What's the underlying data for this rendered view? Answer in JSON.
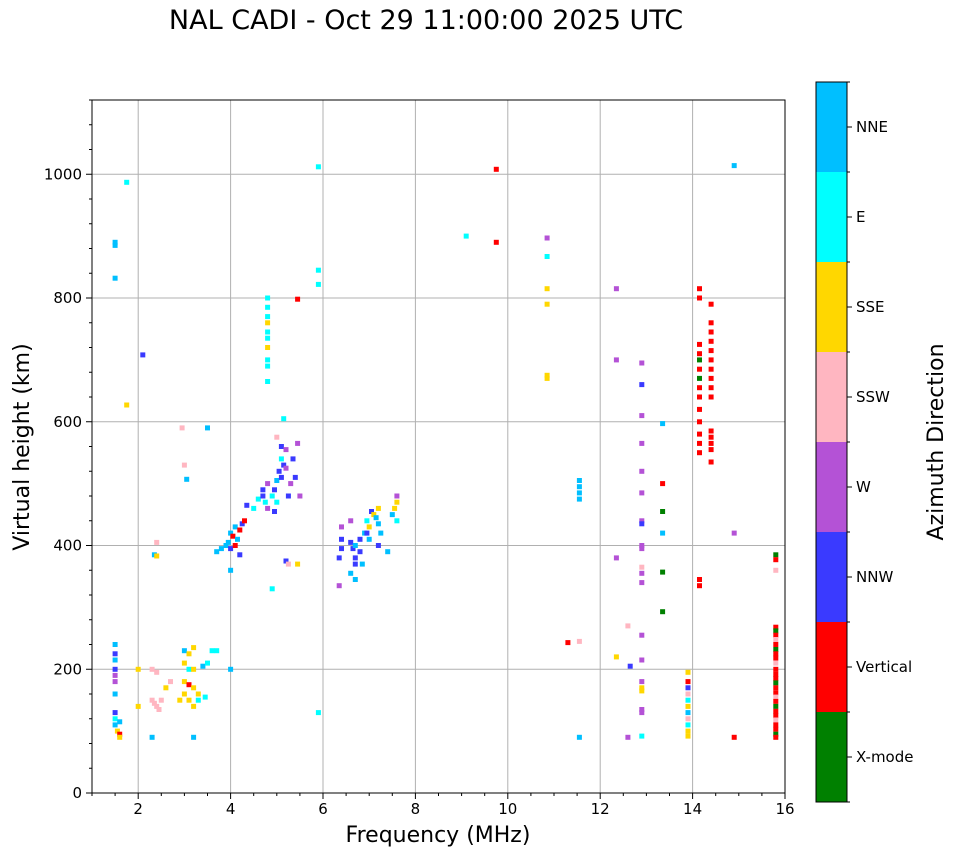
{
  "chart_data": {
    "type": "scatter",
    "title": "NAL CADI - Oct 29 11:00:00 2025 UTC",
    "xlabel": "Frequency (MHz)",
    "ylabel": "Virtual height (km)",
    "xlim": [
      1,
      16
    ],
    "ylim": [
      0,
      1120
    ],
    "xticks": [
      2,
      4,
      6,
      8,
      10,
      12,
      14,
      16
    ],
    "yticks": [
      0,
      200,
      400,
      600,
      800,
      1000
    ],
    "grid": true,
    "colorbar": {
      "label": "Azimuth Direction",
      "categories": [
        {
          "name": "X-mode",
          "color": "#008000"
        },
        {
          "name": "Vertical",
          "color": "#ff0000"
        },
        {
          "name": "NNW",
          "color": "#3a3aff"
        },
        {
          "name": "W",
          "color": "#b452d6"
        },
        {
          "name": "SSW",
          "color": "#ffb6c1"
        },
        {
          "name": "SSE",
          "color": "#ffd700"
        },
        {
          "name": "E",
          "color": "#00ffff"
        },
        {
          "name": "NNE",
          "color": "#00bfff"
        }
      ]
    },
    "points": [
      [
        1.5,
        885,
        "NNE"
      ],
      [
        1.5,
        890,
        "NNE"
      ],
      [
        1.5,
        832,
        "NNE"
      ],
      [
        1.75,
        987,
        "E"
      ],
      [
        1.75,
        627,
        "SSE"
      ],
      [
        1.5,
        240,
        "NNE"
      ],
      [
        1.5,
        225,
        "NNW"
      ],
      [
        1.5,
        215,
        "NNE"
      ],
      [
        1.5,
        200,
        "NNW"
      ],
      [
        1.5,
        190,
        "W"
      ],
      [
        1.5,
        180,
        "W"
      ],
      [
        1.5,
        160,
        "NNE"
      ],
      [
        1.5,
        130,
        "NNW"
      ],
      [
        1.5,
        120,
        "E"
      ],
      [
        1.5,
        110,
        "NNE"
      ],
      [
        1.55,
        100,
        "SSE"
      ],
      [
        1.6,
        95,
        "Vertical"
      ],
      [
        1.6,
        90,
        "SSE"
      ],
      [
        1.6,
        115,
        "NNE"
      ],
      [
        2.1,
        708,
        "NNW"
      ],
      [
        2.0,
        200,
        "SSE"
      ],
      [
        2.0,
        140,
        "SSE"
      ],
      [
        2.35,
        385,
        "NNE"
      ],
      [
        2.4,
        383,
        "SSE"
      ],
      [
        2.4,
        405,
        "SSW"
      ],
      [
        2.3,
        200,
        "SSW"
      ],
      [
        2.4,
        195,
        "SSW"
      ],
      [
        2.3,
        150,
        "SSW"
      ],
      [
        2.35,
        145,
        "SSW"
      ],
      [
        2.4,
        140,
        "SSW"
      ],
      [
        2.45,
        135,
        "SSW"
      ],
      [
        2.5,
        150,
        "SSW"
      ],
      [
        2.3,
        90,
        "NNE"
      ],
      [
        2.6,
        170,
        "SSE"
      ],
      [
        2.7,
        180,
        "SSW"
      ],
      [
        2.9,
        150,
        "SSE"
      ],
      [
        2.95,
        590,
        "SSW"
      ],
      [
        3.0,
        530,
        "SSW"
      ],
      [
        3.05,
        507,
        "NNE"
      ],
      [
        3.0,
        230,
        "NNE"
      ],
      [
        3.1,
        225,
        "SSE"
      ],
      [
        3.2,
        235,
        "SSE"
      ],
      [
        3.0,
        210,
        "SSE"
      ],
      [
        3.1,
        200,
        "E"
      ],
      [
        3.2,
        200,
        "SSE"
      ],
      [
        3.0,
        180,
        "SSE"
      ],
      [
        3.1,
        175,
        "Vertical"
      ],
      [
        3.2,
        170,
        "SSE"
      ],
      [
        3.3,
        160,
        "SSE"
      ],
      [
        3.0,
        160,
        "SSE"
      ],
      [
        3.1,
        150,
        "SSE"
      ],
      [
        3.2,
        140,
        "SSE"
      ],
      [
        3.3,
        150,
        "E"
      ],
      [
        3.4,
        205,
        "NNE"
      ],
      [
        3.5,
        210,
        "E"
      ],
      [
        3.6,
        230,
        "E"
      ],
      [
        3.7,
        230,
        "E"
      ],
      [
        3.2,
        90,
        "NNE"
      ],
      [
        3.45,
        155,
        "E"
      ],
      [
        3.5,
        590,
        "NNE"
      ],
      [
        3.7,
        390,
        "NNE"
      ],
      [
        3.8,
        395,
        "NNE"
      ],
      [
        3.9,
        400,
        "NNE"
      ],
      [
        3.95,
        405,
        "NNE"
      ],
      [
        4.0,
        420,
        "NNE"
      ],
      [
        4.05,
        415,
        "Vertical"
      ],
      [
        4.1,
        430,
        "NNE"
      ],
      [
        4.0,
        395,
        "NNW"
      ],
      [
        4.1,
        400,
        "Vertical"
      ],
      [
        4.15,
        410,
        "NNE"
      ],
      [
        4.2,
        425,
        "Vertical"
      ],
      [
        4.25,
        435,
        "NNW"
      ],
      [
        4.3,
        440,
        "Vertical"
      ],
      [
        4.2,
        385,
        "NNW"
      ],
      [
        4.0,
        360,
        "NNE"
      ],
      [
        4.0,
        200,
        "NNE"
      ],
      [
        4.35,
        465,
        "NNW"
      ],
      [
        4.5,
        460,
        "E"
      ],
      [
        4.6,
        475,
        "E"
      ],
      [
        4.7,
        490,
        "NNW"
      ],
      [
        4.7,
        480,
        "NNW"
      ],
      [
        4.75,
        470,
        "E"
      ],
      [
        4.8,
        500,
        "W"
      ],
      [
        4.8,
        460,
        "W"
      ],
      [
        4.9,
        480,
        "E"
      ],
      [
        4.95,
        490,
        "NNW"
      ],
      [
        5.0,
        505,
        "NNE"
      ],
      [
        5.0,
        470,
        "E"
      ],
      [
        4.95,
        455,
        "NNW"
      ],
      [
        5.05,
        520,
        "NNW"
      ],
      [
        5.1,
        540,
        "E"
      ],
      [
        5.1,
        510,
        "NNW"
      ],
      [
        5.15,
        530,
        "NNW"
      ],
      [
        5.2,
        525,
        "W"
      ],
      [
        5.25,
        480,
        "NNW"
      ],
      [
        5.3,
        500,
        "W"
      ],
      [
        5.35,
        540,
        "NNW"
      ],
      [
        5.4,
        510,
        "NNW"
      ],
      [
        5.45,
        565,
        "W"
      ],
      [
        5.5,
        480,
        "W"
      ],
      [
        5.0,
        575,
        "SSW"
      ],
      [
        5.1,
        560,
        "NNW"
      ],
      [
        5.2,
        555,
        "W"
      ],
      [
        5.15,
        605,
        "E"
      ],
      [
        5.2,
        375,
        "NNW"
      ],
      [
        5.25,
        370,
        "SSW"
      ],
      [
        5.45,
        370,
        "SSE"
      ],
      [
        4.9,
        330,
        "E"
      ],
      [
        4.8,
        800,
        "E"
      ],
      [
        4.8,
        785,
        "E"
      ],
      [
        4.8,
        770,
        "E"
      ],
      [
        4.8,
        760,
        "SSE"
      ],
      [
        4.8,
        745,
        "E"
      ],
      [
        4.8,
        735,
        "E"
      ],
      [
        4.8,
        720,
        "SSE"
      ],
      [
        4.8,
        700,
        "E"
      ],
      [
        4.8,
        690,
        "E"
      ],
      [
        4.8,
        665,
        "E"
      ],
      [
        5.9,
        1012,
        "E"
      ],
      [
        5.9,
        845,
        "E"
      ],
      [
        5.9,
        822,
        "E"
      ],
      [
        5.45,
        798,
        "Vertical"
      ],
      [
        5.9,
        130,
        "E"
      ],
      [
        6.4,
        430,
        "W"
      ],
      [
        6.4,
        410,
        "NNW"
      ],
      [
        6.4,
        395,
        "NNW"
      ],
      [
        6.35,
        380,
        "NNW"
      ],
      [
        6.35,
        335,
        "W"
      ],
      [
        6.6,
        440,
        "W"
      ],
      [
        6.6,
        405,
        "NNW"
      ],
      [
        6.65,
        395,
        "NNW"
      ],
      [
        6.6,
        355,
        "NNE"
      ],
      [
        6.7,
        400,
        "NNE"
      ],
      [
        6.7,
        380,
        "NNW"
      ],
      [
        6.7,
        370,
        "NNW"
      ],
      [
        6.7,
        345,
        "NNE"
      ],
      [
        6.8,
        410,
        "NNW"
      ],
      [
        6.8,
        390,
        "NNW"
      ],
      [
        6.85,
        370,
        "NNE"
      ],
      [
        6.9,
        420,
        "NNE"
      ],
      [
        6.95,
        440,
        "E"
      ],
      [
        7.0,
        430,
        "SSE"
      ],
      [
        7.0,
        410,
        "NNE"
      ],
      [
        7.05,
        455,
        "NNW"
      ],
      [
        7.1,
        450,
        "SSE"
      ],
      [
        7.15,
        445,
        "NNE"
      ],
      [
        7.2,
        435,
        "NNE"
      ],
      [
        7.25,
        420,
        "NNE"
      ],
      [
        7.2,
        400,
        "NNW"
      ],
      [
        7.2,
        460,
        "SSE"
      ],
      [
        7.5,
        450,
        "NNE"
      ],
      [
        7.55,
        460,
        "SSE"
      ],
      [
        7.6,
        470,
        "SSE"
      ],
      [
        7.6,
        480,
        "W"
      ],
      [
        7.6,
        440,
        "E"
      ],
      [
        7.4,
        390,
        "NNE"
      ],
      [
        6.95,
        420,
        "NNW"
      ],
      [
        9.1,
        900,
        "E"
      ],
      [
        9.75,
        1008,
        "Vertical"
      ],
      [
        9.75,
        890,
        "Vertical"
      ],
      [
        10.85,
        897,
        "W"
      ],
      [
        10.85,
        867,
        "E"
      ],
      [
        10.85,
        815,
        "SSE"
      ],
      [
        10.85,
        790,
        "SSE"
      ],
      [
        10.85,
        675,
        "SSE"
      ],
      [
        10.85,
        670,
        "SSE"
      ],
      [
        11.3,
        243,
        "Vertical"
      ],
      [
        11.55,
        245,
        "SSW"
      ],
      [
        11.55,
        505,
        "NNE"
      ],
      [
        11.55,
        495,
        "NNE"
      ],
      [
        11.55,
        485,
        "NNE"
      ],
      [
        11.55,
        475,
        "NNE"
      ],
      [
        11.55,
        90,
        "NNE"
      ],
      [
        12.35,
        815,
        "W"
      ],
      [
        12.35,
        700,
        "W"
      ],
      [
        12.35,
        380,
        "W"
      ],
      [
        12.35,
        220,
        "SSE"
      ],
      [
        12.6,
        270,
        "SSW"
      ],
      [
        12.65,
        205,
        "NNW"
      ],
      [
        12.6,
        90,
        "W"
      ],
      [
        12.9,
        695,
        "W"
      ],
      [
        12.9,
        660,
        "NNW"
      ],
      [
        12.9,
        610,
        "W"
      ],
      [
        12.9,
        565,
        "W"
      ],
      [
        12.9,
        520,
        "W"
      ],
      [
        12.9,
        485,
        "W"
      ],
      [
        12.9,
        440,
        "W"
      ],
      [
        12.9,
        435,
        "NNW"
      ],
      [
        12.9,
        400,
        "W"
      ],
      [
        12.9,
        395,
        "W"
      ],
      [
        12.9,
        365,
        "SSW"
      ],
      [
        12.9,
        355,
        "W"
      ],
      [
        12.9,
        340,
        "W"
      ],
      [
        12.9,
        255,
        "W"
      ],
      [
        12.9,
        215,
        "W"
      ],
      [
        12.9,
        180,
        "W"
      ],
      [
        12.9,
        170,
        "SSE"
      ],
      [
        12.9,
        165,
        "SSE"
      ],
      [
        12.9,
        135,
        "W"
      ],
      [
        12.9,
        130,
        "W"
      ],
      [
        12.9,
        92,
        "E"
      ],
      [
        13.35,
        597,
        "NNE"
      ],
      [
        13.35,
        500,
        "Vertical"
      ],
      [
        13.35,
        455,
        "X-mode"
      ],
      [
        13.35,
        420,
        "NNE"
      ],
      [
        13.35,
        357,
        "X-mode"
      ],
      [
        13.35,
        293,
        "X-mode"
      ],
      [
        13.9,
        195,
        "SSE"
      ],
      [
        13.9,
        180,
        "Vertical"
      ],
      [
        13.9,
        170,
        "NNW"
      ],
      [
        13.9,
        160,
        "SSW"
      ],
      [
        13.9,
        150,
        "E"
      ],
      [
        13.9,
        140,
        "SSE"
      ],
      [
        13.9,
        130,
        "NNE"
      ],
      [
        13.9,
        120,
        "SSW"
      ],
      [
        13.9,
        110,
        "E"
      ],
      [
        13.9,
        100,
        "SSE"
      ],
      [
        13.9,
        92,
        "SSE"
      ],
      [
        14.15,
        815,
        "Vertical"
      ],
      [
        14.15,
        800,
        "Vertical"
      ],
      [
        14.15,
        725,
        "Vertical"
      ],
      [
        14.15,
        710,
        "Vertical"
      ],
      [
        14.15,
        700,
        "X-mode"
      ],
      [
        14.15,
        685,
        "Vertical"
      ],
      [
        14.15,
        670,
        "X-mode"
      ],
      [
        14.15,
        655,
        "Vertical"
      ],
      [
        14.15,
        640,
        "Vertical"
      ],
      [
        14.15,
        620,
        "Vertical"
      ],
      [
        14.15,
        600,
        "Vertical"
      ],
      [
        14.15,
        580,
        "Vertical"
      ],
      [
        14.15,
        565,
        "Vertical"
      ],
      [
        14.15,
        550,
        "Vertical"
      ],
      [
        14.15,
        345,
        "Vertical"
      ],
      [
        14.15,
        335,
        "Vertical"
      ],
      [
        14.4,
        790,
        "Vertical"
      ],
      [
        14.4,
        760,
        "Vertical"
      ],
      [
        14.4,
        745,
        "Vertical"
      ],
      [
        14.4,
        730,
        "Vertical"
      ],
      [
        14.4,
        715,
        "Vertical"
      ],
      [
        14.4,
        700,
        "Vertical"
      ],
      [
        14.4,
        685,
        "Vertical"
      ],
      [
        14.4,
        670,
        "Vertical"
      ],
      [
        14.4,
        655,
        "Vertical"
      ],
      [
        14.4,
        640,
        "Vertical"
      ],
      [
        14.4,
        585,
        "Vertical"
      ],
      [
        14.4,
        575,
        "Vertical"
      ],
      [
        14.4,
        565,
        "Vertical"
      ],
      [
        14.4,
        555,
        "Vertical"
      ],
      [
        14.4,
        535,
        "Vertical"
      ],
      [
        14.9,
        1014,
        "NNE"
      ],
      [
        14.9,
        420,
        "W"
      ],
      [
        14.9,
        90,
        "Vertical"
      ],
      [
        15.8,
        385,
        "X-mode"
      ],
      [
        15.8,
        377,
        "Vertical"
      ],
      [
        15.8,
        360,
        "SSW"
      ],
      [
        15.8,
        268,
        "Vertical"
      ],
      [
        15.8,
        262,
        "X-mode"
      ],
      [
        15.8,
        255,
        "Vertical"
      ],
      [
        15.8,
        248,
        "SSW"
      ],
      [
        15.8,
        240,
        "Vertical"
      ],
      [
        15.8,
        232,
        "X-mode"
      ],
      [
        15.8,
        225,
        "Vertical"
      ],
      [
        15.8,
        218,
        "Vertical"
      ],
      [
        15.8,
        210,
        "SSW"
      ],
      [
        15.8,
        200,
        "Vertical"
      ],
      [
        15.8,
        192,
        "Vertical"
      ],
      [
        15.8,
        185,
        "Vertical"
      ],
      [
        15.8,
        178,
        "X-mode"
      ],
      [
        15.8,
        170,
        "Vertical"
      ],
      [
        15.8,
        162,
        "Vertical"
      ],
      [
        15.8,
        155,
        "SSW"
      ],
      [
        15.8,
        148,
        "Vertical"
      ],
      [
        15.8,
        140,
        "X-mode"
      ],
      [
        15.8,
        132,
        "Vertical"
      ],
      [
        15.8,
        125,
        "Vertical"
      ],
      [
        15.8,
        118,
        "SSW"
      ],
      [
        15.8,
        110,
        "Vertical"
      ],
      [
        15.8,
        103,
        "Vertical"
      ],
      [
        15.8,
        95,
        "X-mode"
      ],
      [
        15.8,
        90,
        "Vertical"
      ]
    ]
  }
}
